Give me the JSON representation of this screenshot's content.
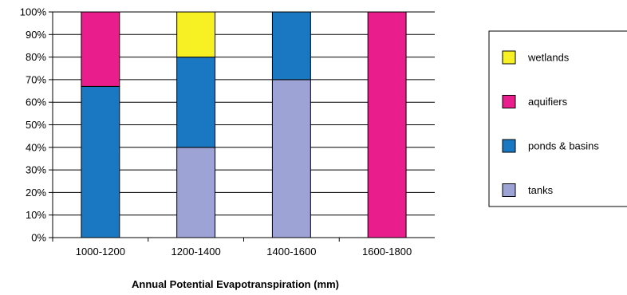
{
  "chart_data": {
    "type": "bar",
    "stacked": true,
    "xlabel": "Annual Potential Evapotranspiration (mm)",
    "ylabel": "",
    "categories": [
      "1000-1200",
      "1200-1400",
      "1400-1600",
      "1600-1800"
    ],
    "ylim": [
      0,
      100
    ],
    "ytick_step": 10,
    "ytick_labels": [
      "0%",
      "10%",
      "20%",
      "30%",
      "40%",
      "50%",
      "60%",
      "70%",
      "80%",
      "90%",
      "100%"
    ],
    "grid": true,
    "legend_position": "right",
    "series": [
      {
        "name": "tanks",
        "color": "#9da3d4",
        "values": [
          0,
          40,
          70,
          0
        ]
      },
      {
        "name": "ponds & basins",
        "color": "#1a78c2",
        "values": [
          67,
          40,
          30,
          0
        ]
      },
      {
        "name": "aquifiers",
        "color": "#e91e8c",
        "values": [
          33,
          0,
          0,
          100
        ]
      },
      {
        "name": "wetlands",
        "color": "#f7f023",
        "values": [
          0,
          20,
          0,
          0
        ]
      }
    ],
    "legend_order": [
      "wetlands",
      "aquifiers",
      "ponds & basins",
      "tanks"
    ]
  }
}
